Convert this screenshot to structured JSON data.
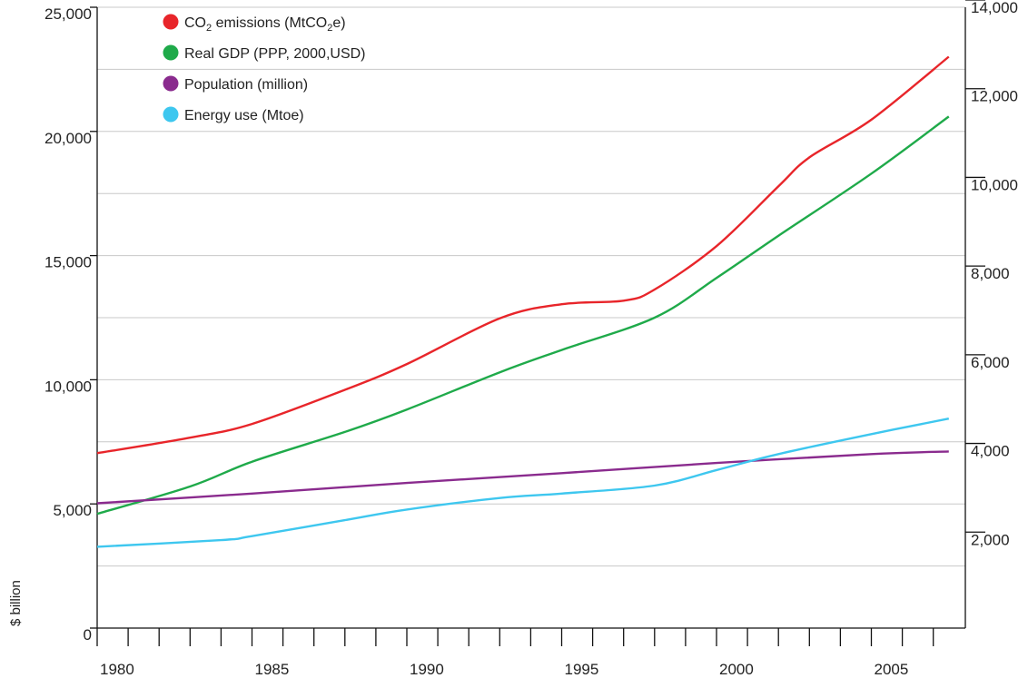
{
  "chart_data": {
    "type": "line",
    "title": "",
    "xlabel": "",
    "ylabel": "$ billion",
    "x": [
      1980,
      1985,
      1990,
      1995,
      2000,
      2005,
      2007.5
    ],
    "xticks_labeled": [
      1980,
      1985,
      1990,
      1995,
      2000,
      2005
    ],
    "x_minor_ticks_every": 1,
    "xlim": [
      1980,
      2007.8
    ],
    "ylim_left": [
      0,
      25000
    ],
    "ylim_right": [
      0,
      14000
    ],
    "yticks_left": [
      0,
      5000,
      10000,
      15000,
      20000,
      25000
    ],
    "yticks_left_labels": [
      "0",
      "5,000",
      "10,000",
      "15,000",
      "20,000",
      "25,000"
    ],
    "yticks_right": [
      2000,
      4000,
      6000,
      8000,
      10000,
      12000,
      14000
    ],
    "yticks_right_labels": [
      "2,000",
      "4,000",
      "6,000",
      "8,000",
      "10,000",
      "12,000",
      "14,000"
    ],
    "grid": "horizontal",
    "legend_position": "top-left",
    "series": [
      {
        "name": "CO₂ emissions (MtCO₂e)",
        "legend_parts": [
          "CO",
          "2",
          " emissions (MtCO",
          "2",
          "e)"
        ],
        "color": "#e8252a",
        "axis": "right",
        "points": [
          [
            1980,
            3780
          ],
          [
            1983,
            4130
          ],
          [
            1985,
            4440
          ],
          [
            1988,
            5210
          ],
          [
            1990,
            5790
          ],
          [
            1993,
            6820
          ],
          [
            1995,
            7140
          ],
          [
            1997,
            7220
          ],
          [
            1998,
            7470
          ],
          [
            2000,
            8450
          ],
          [
            2002,
            9800
          ],
          [
            2003,
            10450
          ],
          [
            2005,
            11300
          ],
          [
            2007.5,
            12720
          ]
        ]
      },
      {
        "name": "Real GDP (PPP, 2000,USD)",
        "color": "#1faa4a",
        "axis": "left",
        "points": [
          [
            1980,
            4600
          ],
          [
            1983,
            5700
          ],
          [
            1985,
            6700
          ],
          [
            1988,
            7900
          ],
          [
            1990,
            8800
          ],
          [
            1993,
            10300
          ],
          [
            1995,
            11200
          ],
          [
            1998,
            12500
          ],
          [
            2000,
            14100
          ],
          [
            2002,
            15800
          ],
          [
            2005,
            18300
          ],
          [
            2007.5,
            20600
          ]
        ]
      },
      {
        "name": "Population (million)",
        "color": "#8a2b8e",
        "axis": "right",
        "points": [
          [
            1980,
            2650
          ],
          [
            1985,
            2870
          ],
          [
            1990,
            3110
          ],
          [
            1995,
            3330
          ],
          [
            2000,
            3560
          ],
          [
            2005,
            3760
          ],
          [
            2007.5,
            3820
          ]
        ]
      },
      {
        "name": "Energy use (Mtoe)",
        "color": "#3ec7ef",
        "axis": "right",
        "points": [
          [
            1980,
            1670
          ],
          [
            1984,
            1820
          ],
          [
            1985,
            1910
          ],
          [
            1988,
            2270
          ],
          [
            1990,
            2510
          ],
          [
            1993,
            2770
          ],
          [
            1995,
            2870
          ],
          [
            1998,
            3050
          ],
          [
            2000,
            3400
          ],
          [
            2002,
            3760
          ],
          [
            2005,
            4210
          ],
          [
            2007.5,
            4560
          ]
        ]
      }
    ]
  }
}
